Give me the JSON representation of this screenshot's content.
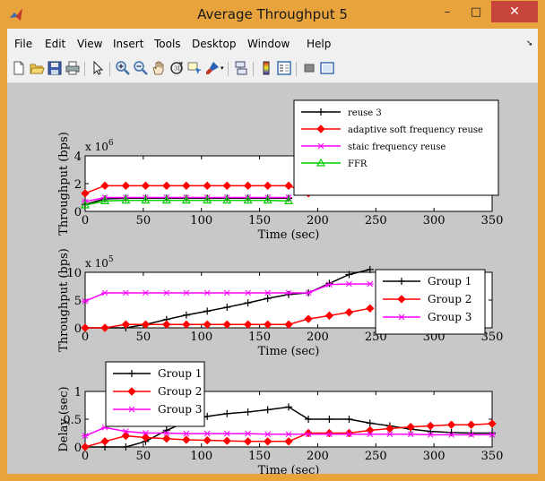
{
  "window": {
    "title": "Average Throughput  5",
    "minimize": "–",
    "maximize": "□",
    "close": "✕",
    "accent": "#e8a33d"
  },
  "menu": [
    "File",
    "Edit",
    "View",
    "Insert",
    "Tools",
    "Desktop",
    "Window",
    "Help"
  ],
  "toolbar_icons": [
    "new-figure-icon",
    "open-icon",
    "save-icon",
    "print-icon",
    "pointer-icon",
    "zoom-in-icon",
    "zoom-out-icon",
    "pan-icon",
    "rotate-3d-icon",
    "data-cursor-icon",
    "brush-icon",
    "link-icon",
    "colorbar-icon",
    "legend-icon",
    "hide-plot-tools-icon",
    "show-plot-tools-icon"
  ],
  "chart_data": [
    {
      "type": "line",
      "ylabel": "Throughput (bps)",
      "xlabel": "Time (sec)",
      "exponent": "x 10",
      "exponent_power": "6",
      "xlim": [
        0,
        350
      ],
      "ylim": [
        0,
        4
      ],
      "yticks": [
        "0",
        "2",
        "4"
      ],
      "xticks": [
        "0",
        "50",
        "100",
        "150",
        "200",
        "250",
        "300",
        "350"
      ],
      "legend_position": "top-right",
      "series": [
        {
          "name": "reuse 3",
          "color": "#000000",
          "marker": "plus",
          "x": [
            0,
            17,
            35,
            52,
            70,
            87,
            105,
            122,
            140,
            157,
            175
          ],
          "y": [
            0.5,
            0.9,
            0.95,
            0.95,
            0.95,
            0.95,
            0.95,
            0.95,
            0.95,
            0.95,
            0.95
          ]
        },
        {
          "name": "adaptive soft frequency reuse",
          "color": "#ff0000",
          "marker": "diamond",
          "x": [
            0,
            17,
            35,
            52,
            70,
            87,
            105,
            122,
            140,
            157,
            175,
            192
          ],
          "y": [
            1.3,
            1.85,
            1.85,
            1.85,
            1.85,
            1.85,
            1.85,
            1.85,
            1.85,
            1.85,
            1.85,
            1.3
          ]
        },
        {
          "name": "staic frequency reuse",
          "color": "#ff00ff",
          "marker": "x",
          "x": [
            0,
            17,
            35,
            52,
            70,
            87,
            105,
            122,
            140,
            157,
            175
          ],
          "y": [
            0.7,
            1.0,
            1.0,
            1.0,
            1.0,
            1.0,
            1.0,
            1.0,
            1.0,
            1.0,
            1.0
          ]
        },
        {
          "name": "FFR",
          "color": "#00cc00",
          "marker": "triangle",
          "x": [
            0,
            17,
            35,
            52,
            70,
            87,
            105,
            122,
            140,
            157,
            175
          ],
          "y": [
            0.45,
            0.75,
            0.8,
            0.8,
            0.8,
            0.8,
            0.8,
            0.8,
            0.8,
            0.8,
            0.75
          ]
        }
      ]
    },
    {
      "type": "line",
      "ylabel": "Throughput (bps)",
      "xlabel": "Time (sec)",
      "exponent": "x 10",
      "exponent_power": "5",
      "xlim": [
        0,
        350
      ],
      "ylim": [
        0,
        10
      ],
      "yticks": [
        "0",
        "5",
        "10"
      ],
      "xticks": [
        "0",
        "50",
        "100",
        "150",
        "200",
        "250",
        "300",
        "350"
      ],
      "legend_position": "top-right",
      "series": [
        {
          "name": "Group 1",
          "color": "#000000",
          "marker": "plus",
          "x": [
            0,
            17,
            35,
            52,
            70,
            87,
            105,
            122,
            140,
            157,
            175,
            192,
            210,
            227,
            245
          ],
          "y": [
            0,
            0,
            0,
            0.6,
            1.5,
            2.3,
            3.0,
            3.7,
            4.5,
            5.3,
            6.0,
            6.3,
            8.0,
            9.6,
            10.5
          ]
        },
        {
          "name": "Group 2",
          "color": "#ff0000",
          "marker": "diamond",
          "x": [
            0,
            17,
            35,
            52,
            70,
            87,
            105,
            122,
            140,
            157,
            175,
            192,
            210,
            227,
            245
          ],
          "y": [
            0,
            0,
            0.6,
            0.6,
            0.6,
            0.6,
            0.6,
            0.6,
            0.6,
            0.6,
            0.6,
            1.6,
            2.2,
            2.8,
            3.5
          ]
        },
        {
          "name": "Group 3",
          "color": "#ff00ff",
          "marker": "x",
          "x": [
            0,
            17,
            35,
            52,
            70,
            87,
            105,
            122,
            140,
            157,
            175,
            192,
            210,
            227,
            245
          ],
          "y": [
            4.8,
            6.3,
            6.3,
            6.3,
            6.3,
            6.3,
            6.3,
            6.3,
            6.3,
            6.3,
            6.3,
            6.3,
            7.8,
            7.9,
            7.9
          ]
        }
      ]
    },
    {
      "type": "line",
      "ylabel": "Delay (sec)",
      "xlabel": "Time (sec)",
      "xlim": [
        0,
        350
      ],
      "ylim": [
        0,
        1
      ],
      "yticks": [
        "0",
        "0.5",
        "1"
      ],
      "xticks": [
        "0",
        "50",
        "100",
        "150",
        "200",
        "250",
        "300",
        "350"
      ],
      "legend_position": "top-left",
      "series": [
        {
          "name": "Group 1",
          "color": "#000000",
          "marker": "plus",
          "x": [
            0,
            17,
            35,
            52,
            70,
            87,
            105,
            122,
            140,
            157,
            175,
            192,
            210,
            227,
            245,
            262,
            280,
            297,
            315,
            332,
            350
          ],
          "y": [
            0,
            0,
            0,
            0.1,
            0.3,
            0.45,
            0.55,
            0.6,
            0.63,
            0.67,
            0.72,
            0.5,
            0.5,
            0.5,
            0.43,
            0.38,
            0.32,
            0.28,
            0.26,
            0.25,
            0.25
          ]
        },
        {
          "name": "Group 2",
          "color": "#ff0000",
          "marker": "diamond",
          "x": [
            0,
            17,
            35,
            52,
            70,
            87,
            105,
            122,
            140,
            157,
            175,
            192,
            210,
            227,
            245,
            262,
            280,
            297,
            315,
            332,
            350
          ],
          "y": [
            0,
            0.1,
            0.2,
            0.17,
            0.15,
            0.13,
            0.12,
            0.11,
            0.1,
            0.1,
            0.1,
            0.25,
            0.25,
            0.25,
            0.3,
            0.33,
            0.36,
            0.38,
            0.4,
            0.4,
            0.42
          ]
        },
        {
          "name": "Group 3",
          "color": "#ff00ff",
          "marker": "x",
          "x": [
            0,
            17,
            35,
            52,
            70,
            87,
            105,
            122,
            140,
            157,
            175,
            192,
            210,
            227,
            245,
            262,
            280,
            297,
            315,
            332,
            350
          ],
          "y": [
            0.2,
            0.35,
            0.28,
            0.25,
            0.25,
            0.24,
            0.24,
            0.24,
            0.24,
            0.23,
            0.23,
            0.23,
            0.23,
            0.23,
            0.23,
            0.23,
            0.23,
            0.22,
            0.22,
            0.22,
            0.22
          ]
        }
      ]
    }
  ]
}
